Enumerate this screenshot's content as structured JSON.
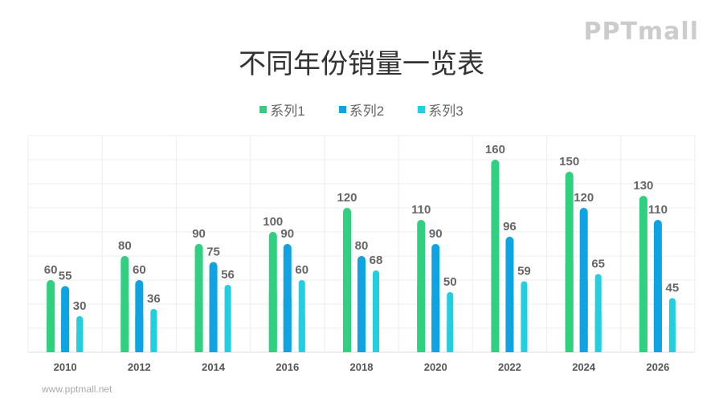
{
  "chart_data": {
    "type": "bar",
    "title": "不同年份销量一览表",
    "categories": [
      "2010",
      "2012",
      "2014",
      "2016",
      "2018",
      "2020",
      "2022",
      "2024",
      "2026"
    ],
    "series": [
      {
        "name": "系列1",
        "color": "#2fd07f",
        "values": [
          60,
          80,
          90,
          100,
          120,
          110,
          160,
          150,
          130
        ]
      },
      {
        "name": "系列2",
        "color": "#0ea3e2",
        "values": [
          55,
          60,
          75,
          90,
          80,
          90,
          96,
          120,
          110
        ]
      },
      {
        "name": "系列3",
        "color": "#22cfe0",
        "values": [
          30,
          36,
          56,
          60,
          68,
          50,
          59,
          65,
          45
        ]
      }
    ],
    "ylim": [
      0,
      180
    ],
    "grid": true,
    "legend": "top-center",
    "data_labels": true
  },
  "logo": "PPTmall",
  "footer": "www.pptmall.net"
}
